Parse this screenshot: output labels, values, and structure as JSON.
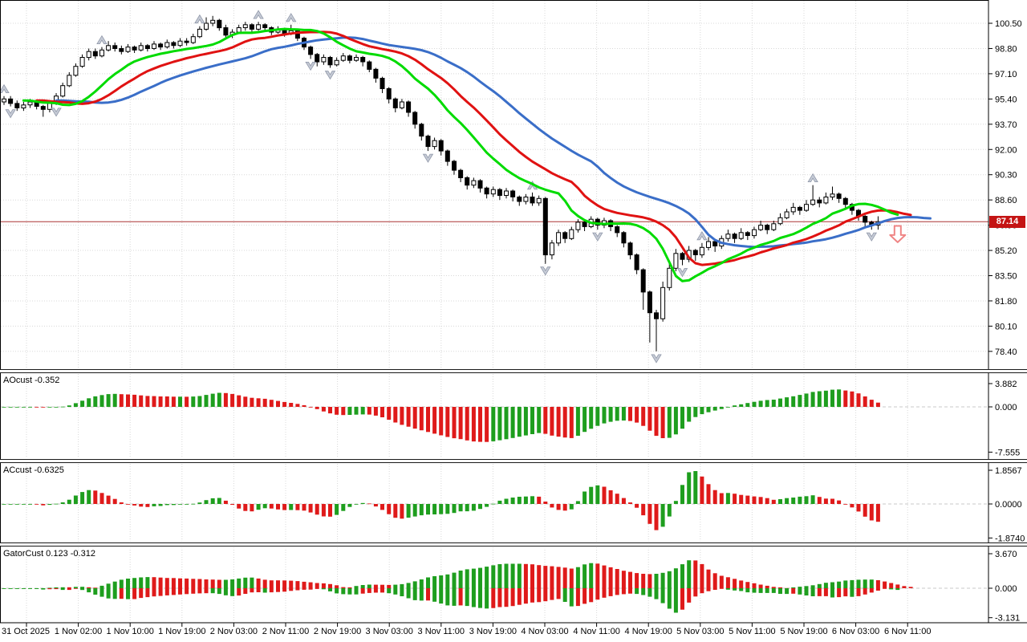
{
  "colors": {
    "background": "#FFFFFF",
    "grid": "#D8D8D8",
    "candle_up_fill": "#FFFFFF",
    "candle_down_fill": "#000000",
    "candle_border": "#000000",
    "alligator_jaw_blue": "#3A6EC8",
    "alligator_teeth_red": "#E01212",
    "alligator_lips_green": "#00DB00",
    "histogram_up_green": "#1E9E1E",
    "histogram_down_red": "#DF1A1A",
    "price_line": "#AA3333",
    "price_badge_bg": "#C41414",
    "price_badge_text": "#FFFFFF",
    "fractal_gray": "#C6CBD6",
    "fractal_edge": "#8F97A8",
    "signal_arrow_red": "#EF8585",
    "axis_text": "#000000"
  },
  "axis": {
    "current_price_label": "87.14"
  },
  "chart_data": {
    "type": "candlestick",
    "title": "",
    "legend_position": "none",
    "grid": true,
    "price_axis_labels": [
      "100.50",
      "98.80",
      "97.10",
      "95.40",
      "93.70",
      "92.00",
      "90.30",
      "88.60",
      "86.90",
      "85.20",
      "83.50",
      "81.80",
      "80.10",
      "78.40"
    ],
    "time_labels": [
      "31 Oct 2025",
      "1 Nov 02:00",
      "1 Nov 10:00",
      "1 Nov 19:00",
      "2 Nov 03:00",
      "2 Nov 11:00",
      "2 Nov 19:00",
      "3 Nov 03:00",
      "3 Nov 11:00",
      "3 Nov 19:00",
      "4 Nov 03:00",
      "4 Nov 11:00",
      "4 Nov 19:00",
      "5 Nov 03:00",
      "5 Nov 11:00",
      "5 Nov 19:00",
      "6 Nov 03:00",
      "6 Nov 11:00"
    ],
    "ylim_visible": [
      77.0,
      102.0
    ],
    "current_price": 87.14,
    "ohlc": [
      [
        95.2,
        95.6,
        95.0,
        95.4
      ],
      [
        95.4,
        95.6,
        94.9,
        95.1
      ],
      [
        95.1,
        95.3,
        94.6,
        94.8
      ],
      [
        94.8,
        95.2,
        94.6,
        95.0
      ],
      [
        95.0,
        95.4,
        94.8,
        95.2
      ],
      [
        95.2,
        95.3,
        94.7,
        94.9
      ],
      [
        94.9,
        95.0,
        94.2,
        94.7
      ],
      [
        94.7,
        95.3,
        94.5,
        95.1
      ],
      [
        95.1,
        95.8,
        95.0,
        95.6
      ],
      [
        95.6,
        96.5,
        95.5,
        96.3
      ],
      [
        96.3,
        97.2,
        96.2,
        97.0
      ],
      [
        97.0,
        97.8,
        96.9,
        97.6
      ],
      [
        97.6,
        98.4,
        97.5,
        98.2
      ],
      [
        98.2,
        98.8,
        98.0,
        98.6
      ],
      [
        98.6,
        98.8,
        98.1,
        98.3
      ],
      [
        98.3,
        98.9,
        98.2,
        98.7
      ],
      [
        98.7,
        99.3,
        98.6,
        99.0
      ],
      [
        99.0,
        99.2,
        98.6,
        98.8
      ],
      [
        98.8,
        99.0,
        98.4,
        98.6
      ],
      [
        98.6,
        99.1,
        98.5,
        98.9
      ],
      [
        98.9,
        99.0,
        98.5,
        98.7
      ],
      [
        98.7,
        99.2,
        98.6,
        99.0
      ],
      [
        99.0,
        99.1,
        98.6,
        98.8
      ],
      [
        98.8,
        99.3,
        98.7,
        99.1
      ],
      [
        99.1,
        99.2,
        98.7,
        98.9
      ],
      [
        98.9,
        99.4,
        98.8,
        99.2
      ],
      [
        99.2,
        99.3,
        98.8,
        99.0
      ],
      [
        99.0,
        99.5,
        98.9,
        99.3
      ],
      [
        99.3,
        99.5,
        99.0,
        99.2
      ],
      [
        99.2,
        99.8,
        99.1,
        99.6
      ],
      [
        99.6,
        100.3,
        99.5,
        100.1
      ],
      [
        100.1,
        100.9,
        100.0,
        100.5
      ],
      [
        100.5,
        101.0,
        100.3,
        100.7
      ],
      [
        100.7,
        100.8,
        100.0,
        100.2
      ],
      [
        100.2,
        100.4,
        99.5,
        99.7
      ],
      [
        99.7,
        100.1,
        99.5,
        99.9
      ],
      [
        99.9,
        100.4,
        99.8,
        100.2
      ],
      [
        100.2,
        100.6,
        100.0,
        100.4
      ],
      [
        100.4,
        100.5,
        99.9,
        100.1
      ],
      [
        100.1,
        100.6,
        100.0,
        100.4
      ],
      [
        100.4,
        100.5,
        100.0,
        100.2
      ],
      [
        100.2,
        100.3,
        99.7,
        99.9
      ],
      [
        99.9,
        100.3,
        99.8,
        100.1
      ],
      [
        100.1,
        100.2,
        99.6,
        99.8
      ],
      [
        99.8,
        100.4,
        99.7,
        100.0
      ],
      [
        100.0,
        100.1,
        99.3,
        99.5
      ],
      [
        99.5,
        99.6,
        98.7,
        98.9
      ],
      [
        98.9,
        99.0,
        98.1,
        98.4
      ],
      [
        98.4,
        98.5,
        97.6,
        97.9
      ],
      [
        97.9,
        98.4,
        97.7,
        98.2
      ],
      [
        98.2,
        98.3,
        97.5,
        97.7
      ],
      [
        97.7,
        98.2,
        97.6,
        98.0
      ],
      [
        98.0,
        98.5,
        97.9,
        98.3
      ],
      [
        98.3,
        98.4,
        97.8,
        98.0
      ],
      [
        98.0,
        98.4,
        97.9,
        98.2
      ],
      [
        98.2,
        98.3,
        97.6,
        97.9
      ],
      [
        97.9,
        98.0,
        97.2,
        97.4
      ],
      [
        97.4,
        97.5,
        96.5,
        96.8
      ],
      [
        96.8,
        96.9,
        95.8,
        96.1
      ],
      [
        96.1,
        96.2,
        95.1,
        95.4
      ],
      [
        95.4,
        95.5,
        94.5,
        94.8
      ],
      [
        94.8,
        95.4,
        94.7,
        95.2
      ],
      [
        95.2,
        95.3,
        94.2,
        94.5
      ],
      [
        94.5,
        94.6,
        93.4,
        93.7
      ],
      [
        93.7,
        93.8,
        92.6,
        92.9
      ],
      [
        92.9,
        93.0,
        91.9,
        92.2
      ],
      [
        92.2,
        92.8,
        92.0,
        92.6
      ],
      [
        92.6,
        92.7,
        91.6,
        91.9
      ],
      [
        91.9,
        92.0,
        90.9,
        91.2
      ],
      [
        91.2,
        91.3,
        90.3,
        90.6
      ],
      [
        90.6,
        90.7,
        89.8,
        90.1
      ],
      [
        90.1,
        90.2,
        89.3,
        89.6
      ],
      [
        89.6,
        90.1,
        89.4,
        89.9
      ],
      [
        89.9,
        90.0,
        89.1,
        89.4
      ],
      [
        89.4,
        89.5,
        88.7,
        89.0
      ],
      [
        89.0,
        89.5,
        88.8,
        89.3
      ],
      [
        89.3,
        89.4,
        88.6,
        88.9
      ],
      [
        88.9,
        89.4,
        88.7,
        89.2
      ],
      [
        89.2,
        89.3,
        88.5,
        88.8
      ],
      [
        88.8,
        88.9,
        88.2,
        88.5
      ],
      [
        88.5,
        89.0,
        88.3,
        88.8
      ],
      [
        88.8,
        89.1,
        88.2,
        88.4
      ],
      [
        88.4,
        88.9,
        88.2,
        88.7
      ],
      [
        88.7,
        88.8,
        84.3,
        84.9
      ],
      [
        84.9,
        85.9,
        84.6,
        85.7
      ],
      [
        85.7,
        86.6,
        85.5,
        86.4
      ],
      [
        86.4,
        86.5,
        85.7,
        86.0
      ],
      [
        86.0,
        86.8,
        85.9,
        86.6
      ],
      [
        86.6,
        87.3,
        86.4,
        87.1
      ],
      [
        87.1,
        87.2,
        86.5,
        86.8
      ],
      [
        86.8,
        87.5,
        86.7,
        87.3
      ],
      [
        87.3,
        87.4,
        86.6,
        86.9
      ],
      [
        86.9,
        87.4,
        86.7,
        87.2
      ],
      [
        87.2,
        87.3,
        86.5,
        86.8
      ],
      [
        86.8,
        86.9,
        86.1,
        86.4
      ],
      [
        86.4,
        86.5,
        85.4,
        85.7
      ],
      [
        85.7,
        85.8,
        84.6,
        84.9
      ],
      [
        84.9,
        85.0,
        83.6,
        83.9
      ],
      [
        83.9,
        84.0,
        81.2,
        82.4
      ],
      [
        82.4,
        82.5,
        79.0,
        81.0
      ],
      [
        81.0,
        81.2,
        78.4,
        80.6
      ],
      [
        80.6,
        83.1,
        80.4,
        82.7
      ],
      [
        82.7,
        84.3,
        82.5,
        84.0
      ],
      [
        84.0,
        85.3,
        83.8,
        85.0
      ],
      [
        85.0,
        85.1,
        84.2,
        84.6
      ],
      [
        84.6,
        85.5,
        84.4,
        85.2
      ],
      [
        85.2,
        85.3,
        84.5,
        84.9
      ],
      [
        84.9,
        85.7,
        84.7,
        85.4
      ],
      [
        85.4,
        86.1,
        85.2,
        85.8
      ],
      [
        85.8,
        85.9,
        85.1,
        85.5
      ],
      [
        85.5,
        86.2,
        85.3,
        86.0
      ],
      [
        86.0,
        86.6,
        85.8,
        86.3
      ],
      [
        86.3,
        86.4,
        85.7,
        86.0
      ],
      [
        86.0,
        86.7,
        85.9,
        86.4
      ],
      [
        86.4,
        86.5,
        85.9,
        86.2
      ],
      [
        86.2,
        86.8,
        86.0,
        86.6
      ],
      [
        86.6,
        87.2,
        86.5,
        86.9
      ],
      [
        86.9,
        87.0,
        86.3,
        86.6
      ],
      [
        86.6,
        87.2,
        86.5,
        87.0
      ],
      [
        87.0,
        87.7,
        86.9,
        87.4
      ],
      [
        87.4,
        88.0,
        87.3,
        87.8
      ],
      [
        87.8,
        88.4,
        87.6,
        88.1
      ],
      [
        88.1,
        88.2,
        87.6,
        87.9
      ],
      [
        87.9,
        88.6,
        87.8,
        88.3
      ],
      [
        88.3,
        89.6,
        88.2,
        88.6
      ],
      [
        88.6,
        88.8,
        88.1,
        88.4
      ],
      [
        88.4,
        89.1,
        88.3,
        88.8
      ],
      [
        88.8,
        89.5,
        88.6,
        89.0
      ],
      [
        89.0,
        89.1,
        88.4,
        88.7
      ],
      [
        88.7,
        88.8,
        88.0,
        88.3
      ],
      [
        88.3,
        88.4,
        87.6,
        87.9
      ],
      [
        87.9,
        88.0,
        87.2,
        87.5
      ],
      [
        87.5,
        87.6,
        86.8,
        87.1
      ],
      [
        87.1,
        87.2,
        86.6,
        86.9
      ],
      [
        86.9,
        87.5,
        86.6,
        87.14
      ]
    ],
    "overlays": {
      "alligator": {
        "jaw": {
          "period": 13,
          "shift": 8
        },
        "teeth": {
          "period": 8,
          "shift": 5
        },
        "lips": {
          "period": 5,
          "shift": 3
        }
      }
    },
    "fractals": {
      "up": [
        0,
        15,
        30,
        39,
        44,
        81,
        107,
        124
      ],
      "down": [
        1,
        8,
        47,
        50,
        65,
        83,
        91,
        100,
        104,
        133
      ]
    },
    "signal": {
      "kind": "sell-arrow",
      "bar_index": 137,
      "price_top": 86.85,
      "price_bottom": 85.75
    },
    "indicators": [
      {
        "id": "ao",
        "label": "AOcust -0.352",
        "type": "histogram",
        "formula": "sma(hl2,5)-sma(hl2,34)",
        "axis_labels": [
          "3.882",
          "0.000",
          "-7.555"
        ]
      },
      {
        "id": "ac",
        "label": "ACcust -0.6325",
        "type": "histogram",
        "formula": "ao-sma(ao,5)",
        "axis_labels": [
          "1.8567",
          "0.0000",
          "-1.8740"
        ]
      },
      {
        "id": "gator",
        "label": "GatorCust 0.123 -0.312",
        "type": "double-histogram",
        "formula": "abs(jaw-teeth) / -abs(teeth-lips)",
        "axis_labels": [
          "3.670",
          "0.000",
          "-3.131"
        ]
      }
    ]
  }
}
